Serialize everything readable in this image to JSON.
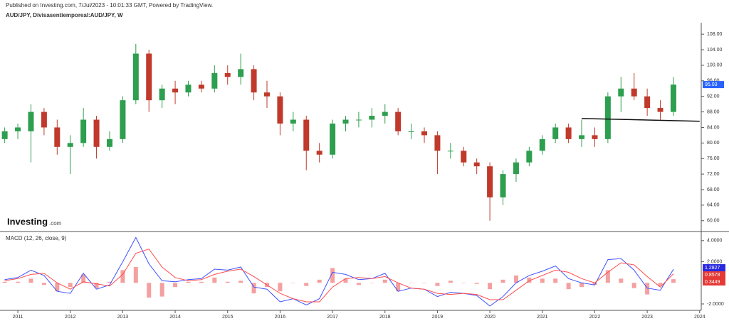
{
  "header": {
    "published": "Published on Investing.com, 7/Jul/2023 - 10:01:33 GMT, Powered by TradingView.",
    "symbol": "AUD/JPY, Divisasentiemporeal:AUD/JPY, W",
    "logo": "Investing",
    "logo_suffix": ".com"
  },
  "chart_data": [
    {
      "type": "candlestick",
      "x": [
        2010.75,
        2011,
        2011.25,
        2011.5,
        2011.75,
        2012,
        2012.25,
        2012.5,
        2012.75,
        2013,
        2013.25,
        2013.5,
        2013.75,
        2014,
        2014.25,
        2014.5,
        2014.75,
        2015,
        2015.25,
        2015.5,
        2015.75,
        2016,
        2016.25,
        2016.5,
        2016.75,
        2017,
        2017.25,
        2017.5,
        2017.75,
        2018,
        2018.25,
        2018.5,
        2018.75,
        2019,
        2019.25,
        2019.5,
        2019.75,
        2020,
        2020.25,
        2020.5,
        2020.75,
        2021,
        2021.25,
        2021.5,
        2021.75,
        2022,
        2022.25,
        2022.5,
        2022.75,
        2023,
        2023.25,
        2023.5
      ],
      "open": [
        81,
        83,
        83,
        88,
        84,
        79,
        80,
        86,
        79,
        81,
        91,
        103,
        91,
        94,
        93,
        95,
        94,
        98,
        97,
        99,
        93,
        92,
        85,
        86,
        78,
        77,
        85,
        86,
        86,
        87,
        88,
        83,
        83,
        82,
        78,
        78,
        75,
        74,
        66,
        72,
        75,
        78,
        81,
        84,
        81,
        82,
        81,
        92,
        94,
        92,
        89,
        88
      ],
      "high": [
        84,
        85,
        90,
        89,
        86,
        82,
        89,
        87,
        83,
        92,
        105.5,
        104,
        95,
        96,
        96,
        96,
        100,
        100,
        103,
        100,
        96,
        93,
        88,
        87,
        80,
        86,
        87,
        88,
        89,
        90,
        89,
        85,
        84,
        83,
        80,
        79,
        76,
        75,
        73,
        76,
        79,
        82,
        85,
        85,
        86,
        84,
        93,
        97,
        98,
        94,
        91,
        97
      ],
      "low": [
        80,
        81,
        75,
        82,
        77,
        72,
        79,
        76,
        78,
        80,
        90,
        88,
        89,
        90,
        92,
        93,
        93,
        95,
        95,
        91,
        89,
        82,
        83,
        73,
        75,
        76,
        83,
        84,
        84,
        85,
        82,
        81,
        80,
        72,
        76,
        74,
        72,
        60,
        64,
        70,
        74,
        77,
        80,
        80,
        79,
        79,
        80,
        88,
        91,
        87,
        86,
        87
      ],
      "close": [
        83,
        84,
        88,
        84,
        79,
        80,
        86,
        79,
        81,
        91,
        103,
        91,
        94,
        93,
        95,
        94,
        98,
        97,
        99,
        93,
        92,
        85,
        86,
        78,
        77,
        85,
        86,
        86,
        87,
        88,
        83,
        83,
        82,
        78,
        78,
        75,
        74,
        66,
        72,
        75,
        78,
        81,
        84,
        81,
        82,
        81,
        92,
        94,
        92,
        89,
        88,
        95.03
      ],
      "up_color": "#2e9e4f",
      "down_color": "#c0392b",
      "label_color": "#2962ff",
      "hline": {
        "x": [
          2021.75,
          2024.0
        ],
        "y": [
          86.3,
          85.6
        ]
      },
      "xlim": [
        2010.66,
        2024.03
      ],
      "ylim": [
        57.4,
        110.4
      ],
      "yticks": [
        {
          "value": 60,
          "label": "60.00"
        },
        {
          "value": 64,
          "label": "64.00"
        },
        {
          "value": 68,
          "label": "68.00"
        },
        {
          "value": 72,
          "label": "72.00"
        },
        {
          "value": 76,
          "label": "76.00"
        },
        {
          "value": 80,
          "label": "80.00"
        },
        {
          "value": 84,
          "label": "84.00"
        },
        {
          "value": 88,
          "label": "88.00"
        },
        {
          "value": 92,
          "label": "92.00"
        },
        {
          "value": 96,
          "label": "96.00"
        },
        {
          "value": 100,
          "label": "100.00"
        },
        {
          "value": 104,
          "label": "104.00"
        },
        {
          "value": 108,
          "label": "108.00"
        }
      ]
    },
    {
      "type": "macd",
      "title": "MACD (12, 26, close, 9)",
      "x": [
        2010.75,
        2011,
        2011.25,
        2011.5,
        2011.75,
        2012,
        2012.25,
        2012.5,
        2012.75,
        2013,
        2013.25,
        2013.5,
        2013.75,
        2014,
        2014.25,
        2014.5,
        2014.75,
        2015,
        2015.25,
        2015.5,
        2015.75,
        2016,
        2016.25,
        2016.5,
        2016.75,
        2017,
        2017.25,
        2017.5,
        2017.75,
        2018,
        2018.25,
        2018.5,
        2018.75,
        2019,
        2019.25,
        2019.5,
        2019.75,
        2020,
        2020.25,
        2020.5,
        2020.75,
        2021,
        2021.25,
        2021.5,
        2021.75,
        2022,
        2022.25,
        2022.5,
        2022.75,
        2023,
        2023.25,
        2023.5
      ],
      "series": [
        {
          "color": "#f4a0a0",
          "style": "bar",
          "label_color": "#e53935",
          "values": [
            0.1,
            0.1,
            0.4,
            -0.2,
            -0.8,
            -0.4,
            0.8,
            -0.5,
            0.1,
            1.2,
            1.5,
            -1.4,
            -1.3,
            -0.4,
            0.1,
            0.1,
            0.5,
            0.1,
            0.2,
            -1.0,
            -0.4,
            -0.8,
            0.0,
            -0.3,
            0.3,
            1.4,
            0.4,
            -0.2,
            0.0,
            0.3,
            -0.8,
            0.0,
            0.0,
            -0.3,
            0.2,
            0.0,
            -0.1,
            -0.6,
            0.3,
            0.7,
            0.5,
            0.4,
            0.4,
            -0.6,
            -0.4,
            -0.2,
            1.2,
            0.4,
            -0.5,
            -1.1,
            -0.3,
            0.3449
          ]
        },
        {
          "color": "#3f51ff",
          "style": "line",
          "label_color": "#2929e0",
          "values": [
            0.3,
            0.5,
            1.2,
            0.7,
            -0.8,
            -1.0,
            0.9,
            -0.6,
            -0.2,
            2.0,
            4.3,
            1.8,
            0.2,
            0.1,
            0.3,
            0.4,
            1.3,
            1.2,
            1.5,
            -0.4,
            -0.6,
            -1.8,
            -1.5,
            -2.1,
            -1.5,
            1.0,
            0.8,
            0.3,
            0.4,
            0.9,
            -0.8,
            -0.5,
            -0.6,
            -1.3,
            -0.9,
            -1.0,
            -1.2,
            -2.2,
            -1.3,
            0.0,
            0.7,
            1.1,
            1.6,
            0.4,
            0.0,
            -0.2,
            2.2,
            2.3,
            1.2,
            -0.5,
            -0.7,
            1.2827
          ]
        },
        {
          "color": "#ff4d4d",
          "style": "line",
          "label_color": "#e53935",
          "values": [
            0.2,
            0.4,
            0.8,
            0.9,
            0.0,
            -0.6,
            0.1,
            -0.1,
            -0.3,
            0.8,
            2.8,
            3.2,
            1.5,
            0.5,
            0.2,
            0.3,
            0.8,
            1.1,
            1.3,
            0.6,
            -0.2,
            -1.0,
            -1.5,
            -1.8,
            -1.8,
            -0.4,
            0.4,
            0.5,
            0.4,
            0.6,
            0.0,
            -0.5,
            -0.6,
            -1.0,
            -1.1,
            -1.0,
            -1.1,
            -1.6,
            -1.6,
            -0.7,
            0.2,
            0.7,
            1.2,
            1.0,
            0.4,
            0.0,
            1.0,
            1.9,
            1.7,
            0.6,
            -0.4,
            0.8578
          ]
        }
      ],
      "xlim": [
        2010.66,
        2024.03
      ],
      "ylim": [
        -2.54,
        4.73
      ],
      "xticks": [
        2011,
        2012,
        2013,
        2014,
        2015,
        2016,
        2017,
        2018,
        2019,
        2020,
        2021,
        2022,
        2023,
        2024
      ],
      "yticks": [
        {
          "value": 4,
          "label": "4.0000"
        },
        {
          "value": 2,
          "label": "2.0000"
        },
        {
          "value": -2,
          "label": "-2.0000"
        }
      ]
    }
  ]
}
